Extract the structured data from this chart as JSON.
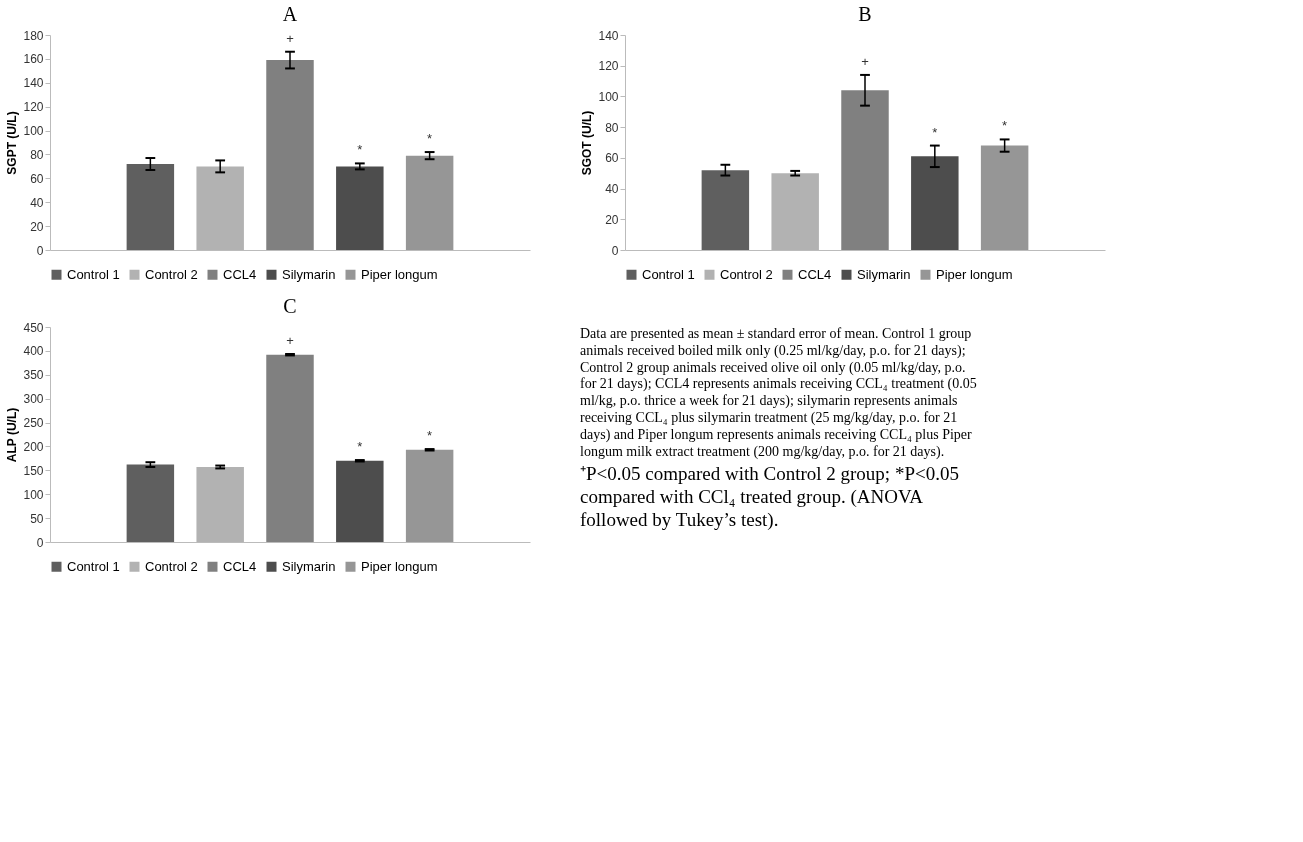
{
  "chart_data": [
    {
      "type": "bar",
      "title": "A",
      "ylabel": "SGPT (U/L)",
      "categories": [
        null
      ],
      "series": [
        {
          "name": "Control 1",
          "color": "#5f5f5f",
          "values": [
            72
          ],
          "errors": [
            5
          ]
        },
        {
          "name": "Control 2",
          "color": "#b2b2b2",
          "values": [
            70
          ],
          "errors": [
            5
          ]
        },
        {
          "name": "CCL4",
          "color": "#808080",
          "values": [
            159
          ],
          "errors": [
            7
          ],
          "value_labels": [
            "+"
          ]
        },
        {
          "name": "Silymarin",
          "color": "#4d4d4d",
          "values": [
            70
          ],
          "errors": [
            2.5
          ],
          "value_labels": [
            "*"
          ]
        },
        {
          "name": "Piper longum",
          "color": "#969696",
          "values": [
            79
          ],
          "errors": [
            3
          ],
          "value_labels": [
            "*"
          ]
        }
      ],
      "ylim": [
        0,
        180
      ],
      "yticks": [
        0,
        20,
        40,
        60,
        80,
        100,
        120,
        140,
        160,
        180
      ],
      "grid": false,
      "legend": "bottom",
      "tick_labels": "y"
    },
    {
      "type": "bar",
      "title": "B",
      "ylabel": "SGOT (U/L)",
      "categories": [
        null
      ],
      "series": [
        {
          "name": "Control 1",
          "color": "#5f5f5f",
          "values": [
            52
          ],
          "errors": [
            3.5
          ]
        },
        {
          "name": "Control 2",
          "color": "#b2b2b2",
          "values": [
            50
          ],
          "errors": [
            1.5
          ]
        },
        {
          "name": "CCL4",
          "color": "#808080",
          "values": [
            104
          ],
          "errors": [
            10
          ],
          "value_labels": [
            "+"
          ]
        },
        {
          "name": "Silymarin",
          "color": "#4d4d4d",
          "values": [
            61
          ],
          "errors": [
            7
          ],
          "value_labels": [
            "*"
          ]
        },
        {
          "name": "Piper longum",
          "color": "#969696",
          "values": [
            68
          ],
          "errors": [
            4
          ],
          "value_labels": [
            "*"
          ]
        }
      ],
      "ylim": [
        0,
        140
      ],
      "yticks": [
        0,
        20,
        40,
        60,
        80,
        100,
        120,
        140
      ],
      "grid": false,
      "legend": "bottom",
      "tick_labels": "y"
    },
    {
      "type": "bar",
      "title": "C",
      "ylabel": "ALP (U/L)",
      "categories": [
        null
      ],
      "series": [
        {
          "name": "Control 1",
          "color": "#5f5f5f",
          "values": [
            162
          ],
          "errors": [
            5
          ]
        },
        {
          "name": "Control 2",
          "color": "#b2b2b2",
          "values": [
            157
          ],
          "errors": [
            3
          ]
        },
        {
          "name": "CCL4",
          "color": "#808080",
          "values": [
            392
          ],
          "errors": [
            1.5
          ],
          "value_labels": [
            "+"
          ]
        },
        {
          "name": "Silymarin",
          "color": "#4d4d4d",
          "values": [
            170
          ],
          "errors": [
            1.5
          ],
          "value_labels": [
            "*"
          ]
        },
        {
          "name": "Piper longum",
          "color": "#969696",
          "values": [
            193
          ],
          "errors": [
            1.5
          ],
          "value_labels": [
            "*"
          ]
        }
      ],
      "ylim": [
        0,
        450
      ],
      "yticks": [
        0,
        50,
        100,
        150,
        200,
        250,
        300,
        350,
        400,
        450
      ],
      "grid": false,
      "legend": "bottom",
      "tick_labels": "y"
    },
    {
      "type": "other",
      "annotations": [
        "Data are presented as mean ± standard error of mean. Control 1 group animals received boiled milk only (0.25 ml/kg/day, p.o. for 21 days); Control 2 group animals received olive oil only (0.05 ml/kg/day, p.o. for 21 days); CCL4 represents animals receiving CCL₄ treatment (0.05 ml/kg, p.o. thrice a week for 21 days); silymarin represents animals receiving CCL₄ plus silymarin treatment (25 mg/kg/day, p.o. for 21 days) and Piper longum represents animals receiving CCL₄ plus Piper longum milk extract treatment (200 mg/kg/day, p.o. for 21 days).",
        "⁺P<0.05 compared with Control 2 group; *P<0.05 compared with CCl₄ treated group. (ANOVA followed by Tukey’s test)."
      ]
    }
  ]
}
